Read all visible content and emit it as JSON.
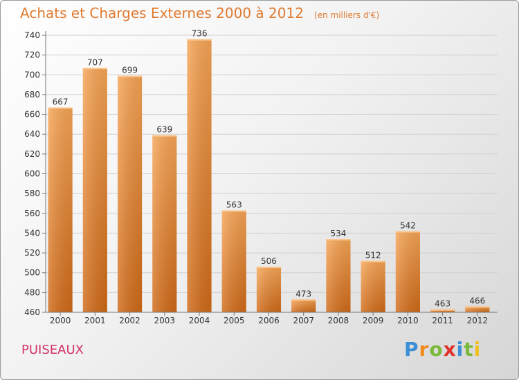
{
  "chart_data": {
    "type": "bar",
    "title": "Achats et Charges Externes 2000 à 2012",
    "subtitle": "(en milliers d'€)",
    "categories": [
      "2000",
      "2001",
      "2002",
      "2003",
      "2004",
      "2005",
      "2006",
      "2007",
      "2008",
      "2009",
      "2010",
      "2011",
      "2012"
    ],
    "values": [
      667,
      707,
      699,
      639,
      736,
      563,
      506,
      473,
      534,
      512,
      542,
      463,
      466
    ],
    "ylim": [
      460,
      740
    ],
    "yticks": [
      460,
      480,
      500,
      520,
      540,
      560,
      580,
      600,
      620,
      640,
      660,
      680,
      700,
      720,
      740
    ],
    "xlabel": "",
    "ylabel": "",
    "grid": true,
    "bar_color": "#f0923a"
  },
  "footer": {
    "commune": "PUISEAUX"
  },
  "logo": {
    "letters": [
      "P",
      "r",
      "o",
      "x",
      "i",
      "t",
      "i"
    ],
    "colors": [
      "#3a8fd6",
      "#f08a1c",
      "#7ab83a",
      "#e0322a",
      "#3a8fd6",
      "#7ab83a",
      "#f0c020"
    ]
  }
}
